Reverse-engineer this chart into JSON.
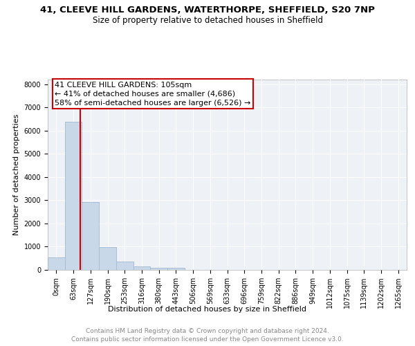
{
  "title_line1": "41, CLEEVE HILL GARDENS, WATERTHORPE, SHEFFIELD, S20 7NP",
  "title_line2": "Size of property relative to detached houses in Sheffield",
  "xlabel": "Distribution of detached houses by size in Sheffield",
  "ylabel": "Number of detached properties",
  "footer_line1": "Contains HM Land Registry data © Crown copyright and database right 2024.",
  "footer_line2": "Contains public sector information licensed under the Open Government Licence v3.0.",
  "bar_labels": [
    "0sqm",
    "63sqm",
    "127sqm",
    "190sqm",
    "253sqm",
    "316sqm",
    "380sqm",
    "443sqm",
    "506sqm",
    "569sqm",
    "633sqm",
    "696sqm",
    "759sqm",
    "822sqm",
    "886sqm",
    "949sqm",
    "1012sqm",
    "1075sqm",
    "1139sqm",
    "1202sqm",
    "1265sqm"
  ],
  "bar_values": [
    530,
    6380,
    2920,
    980,
    360,
    155,
    100,
    95,
    0,
    0,
    0,
    0,
    0,
    0,
    0,
    0,
    0,
    0,
    0,
    0,
    0
  ],
  "bar_color": "#c8d8e8",
  "bar_edge_color": "#a0b8d0",
  "annotation_box_text": "41 CLEEVE HILL GARDENS: 105sqm\n← 41% of detached houses are smaller (4,686)\n58% of semi-detached houses are larger (6,526) →",
  "annotation_box_color": "#ffffff",
  "annotation_box_edge_color": "#cc0000",
  "vline_x": 1.42,
  "vline_color": "#cc0000",
  "ylim": [
    0,
    8200
  ],
  "yticks": [
    0,
    1000,
    2000,
    3000,
    4000,
    5000,
    6000,
    7000,
    8000
  ],
  "background_color": "#eef2f7",
  "grid_color": "#ffffff",
  "title_fontsize": 9.5,
  "subtitle_fontsize": 8.5,
  "axis_label_fontsize": 8,
  "tick_fontsize": 7,
  "annotation_fontsize": 8,
  "footer_fontsize": 6.5
}
